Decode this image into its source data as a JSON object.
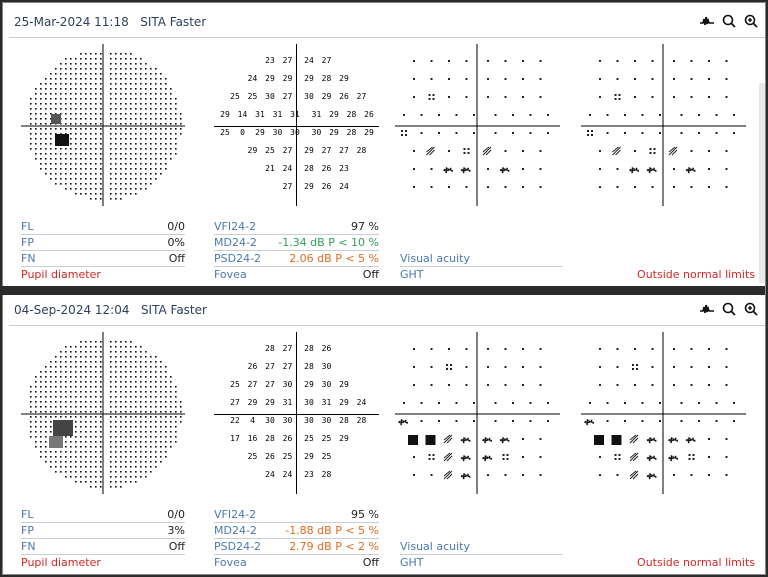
{
  "panels": [
    {
      "header": {
        "date": "25-Mar-2024 11:18",
        "strategy": "SITA Faster"
      },
      "thresholds": [
        [
          "",
          "",
          "23",
          "27",
          "24",
          "27",
          "",
          ""
        ],
        [
          "",
          "24",
          "29",
          "29",
          "29",
          "28",
          "29",
          ""
        ],
        [
          "25",
          "25",
          "30",
          "27",
          "30",
          "29",
          "26",
          "27"
        ],
        [
          "29",
          "14",
          "31",
          "31",
          "31",
          "31",
          "29",
          "28",
          "26"
        ],
        [
          "25",
          "0",
          "29",
          "30",
          "30",
          "30",
          "29",
          "28",
          "29"
        ],
        [
          "",
          "29",
          "25",
          "27",
          "29",
          "27",
          "27",
          "28"
        ],
        [
          "",
          "",
          "21",
          "24",
          "28",
          "26",
          "23",
          ""
        ],
        [
          "",
          "",
          "",
          "27",
          "29",
          "26",
          "24",
          ""
        ]
      ],
      "reliability": [
        {
          "label": "FL",
          "value": "0/0"
        },
        {
          "label": "FP",
          "value": "0%"
        },
        {
          "label": "FN",
          "value": "Off"
        }
      ],
      "pupil_label": "Pupil diameter",
      "indices": [
        {
          "label": "VFI24-2",
          "value": "97 %",
          "tone": "normal"
        },
        {
          "label": "MD24-2",
          "value": "-1.34 dB P < 10 %",
          "tone": "green"
        },
        {
          "label": "PSD24-2",
          "value": "2.06 dB P < 5 %",
          "tone": "orange"
        },
        {
          "label": "Fovea",
          "value": "Off",
          "tone": "normal"
        }
      ],
      "visual_acuity_label": "Visual acuity",
      "ght_label": "GHT",
      "ght_value": "Outside normal limits"
    },
    {
      "header": {
        "date": "04-Sep-2024 12:04",
        "strategy": "SITA Faster"
      },
      "thresholds": [
        [
          "",
          "",
          "28",
          "27",
          "28",
          "26",
          "",
          ""
        ],
        [
          "",
          "26",
          "27",
          "27",
          "28",
          "30",
          "",
          ""
        ],
        [
          "25",
          "27",
          "27",
          "30",
          "29",
          "30",
          "29",
          ""
        ],
        [
          "27",
          "29",
          "29",
          "31",
          "30",
          "31",
          "29",
          "24"
        ],
        [
          "22",
          "4",
          "30",
          "30",
          "30",
          "30",
          "28",
          "28"
        ],
        [
          "17",
          "16",
          "28",
          "26",
          "25",
          "25",
          "29",
          ""
        ],
        [
          "",
          "25",
          "26",
          "25",
          "29",
          "25",
          "",
          ""
        ],
        [
          "",
          "",
          "24",
          "24",
          "23",
          "28",
          "",
          ""
        ]
      ],
      "reliability": [
        {
          "label": "FL",
          "value": "0/0"
        },
        {
          "label": "FP",
          "value": "3%"
        },
        {
          "label": "FN",
          "value": "Off"
        }
      ],
      "pupil_label": "Pupil diameter",
      "indices": [
        {
          "label": "VFI24-2",
          "value": "95 %",
          "tone": "normal"
        },
        {
          "label": "MD24-2",
          "value": "-1.88 dB P < 5 %",
          "tone": "orange"
        },
        {
          "label": "PSD24-2",
          "value": "2.79 dB P < 2 %",
          "tone": "orange"
        },
        {
          "label": "Fovea",
          "value": "Off",
          "tone": "normal"
        }
      ],
      "visual_acuity_label": "Visual acuity",
      "ght_label": "GHT",
      "ght_value": "Outside normal limits"
    }
  ],
  "header_icons": [
    "waveform-icon",
    "search-icon",
    "zoom-in-icon"
  ],
  "colors": {
    "accent_blue": "#4a79b0",
    "green": "#2e9f57",
    "orange": "#e26a1f",
    "red": "#d62727",
    "title": "#2e3f5c"
  }
}
